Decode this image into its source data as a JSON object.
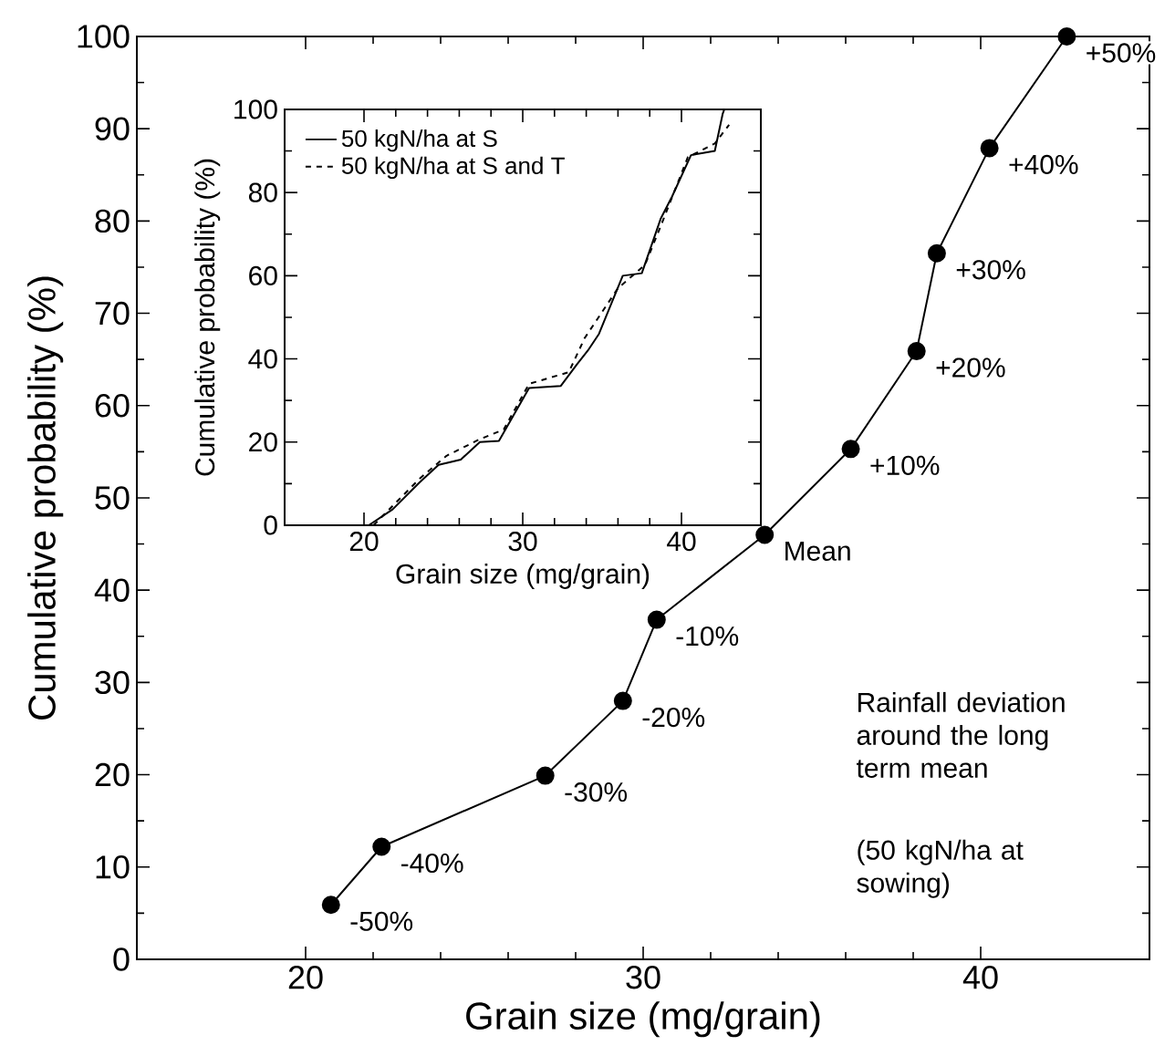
{
  "chart_data": [
    {
      "type": "line",
      "xlabel": "Grain size (mg/grain)",
      "ylabel": "Cumulative probability (%)",
      "xlim": [
        15,
        45
      ],
      "ylim": [
        0,
        100
      ],
      "xticks": [
        20,
        30,
        40
      ],
      "yticks": [
        0,
        10,
        20,
        30,
        40,
        50,
        60,
        70,
        80,
        90,
        100
      ],
      "marker": "circle",
      "line_style": "solid",
      "x": [
        20.75,
        22.25,
        27.1,
        29.4,
        30.4,
        33.6,
        36.15,
        38.1,
        38.7,
        40.26,
        42.55
      ],
      "series": [
        {
          "color": "#000000",
          "values": [
            5.9,
            12.2,
            19.9,
            28.0,
            36.8,
            46.0,
            55.3,
            65.9,
            76.5,
            87.9,
            100
          ]
        }
      ],
      "annotations": [
        {
          "text": "-50%",
          "x": 20.75,
          "y": 5.9
        },
        {
          "text": "-40%",
          "x": 22.25,
          "y": 12.2
        },
        {
          "text": "-30%",
          "x": 27.1,
          "y": 19.9
        },
        {
          "text": "-20%",
          "x": 29.4,
          "y": 28.0
        },
        {
          "text": "-10%",
          "x": 30.4,
          "y": 36.8
        },
        {
          "text": "Mean",
          "x": 33.6,
          "y": 46.0
        },
        {
          "text": "+10%",
          "x": 36.15,
          "y": 55.3
        },
        {
          "text": "+20%",
          "x": 38.1,
          "y": 65.9
        },
        {
          "text": "+30%",
          "x": 38.7,
          "y": 76.5
        },
        {
          "text": "+40%",
          "x": 40.26,
          "y": 87.9
        },
        {
          "text": "+50%",
          "x": 42.55,
          "y": 100
        },
        "Rainfall deviation around the long term mean",
        "(50 kgN/ha at sowing)"
      ]
    },
    {
      "type": "line",
      "xlabel": "Grain size (mg/grain)",
      "ylabel": "Cumulative probability (%)",
      "xlim": [
        15,
        45
      ],
      "ylim": [
        0,
        100
      ],
      "xticks": [
        20,
        30,
        40
      ],
      "yticks": [
        0,
        20,
        40,
        60,
        80,
        100
      ],
      "marker": "none",
      "legend": "top left",
      "series": [
        {
          "name": "50 kgN/ha at S",
          "color": "#000000",
          "line_style": "solid",
          "x": [
            20.3,
            21.8,
            23.5,
            24.7,
            26.1,
            27.3,
            28.5,
            30.4,
            32.4,
            33.4,
            34.1,
            34.8,
            36.3,
            37.5,
            38.7,
            39.4,
            40.6,
            42.1,
            42.6,
            42.7
          ],
          "values": [
            0,
            3.8,
            10.3,
            14.5,
            15.8,
            20,
            20.3,
            33,
            33.5,
            38.6,
            42,
            46,
            60,
            60.6,
            73.8,
            79,
            89,
            90,
            99,
            100
          ]
        },
        {
          "name": "50 kgN/ha at S and T",
          "color": "#000000",
          "line_style": "dashed",
          "x": [
            20.6,
            23.5,
            25.2,
            27.3,
            28.8,
            30.4,
            32.9,
            33.9,
            36.0,
            37.7,
            38.7,
            40.4,
            42.1,
            43.0
          ],
          "values": [
            0,
            11.2,
            16.7,
            20.7,
            23,
            34,
            36.8,
            45,
            57,
            62.6,
            72,
            88.5,
            91.8,
            96.3
          ]
        }
      ]
    }
  ]
}
